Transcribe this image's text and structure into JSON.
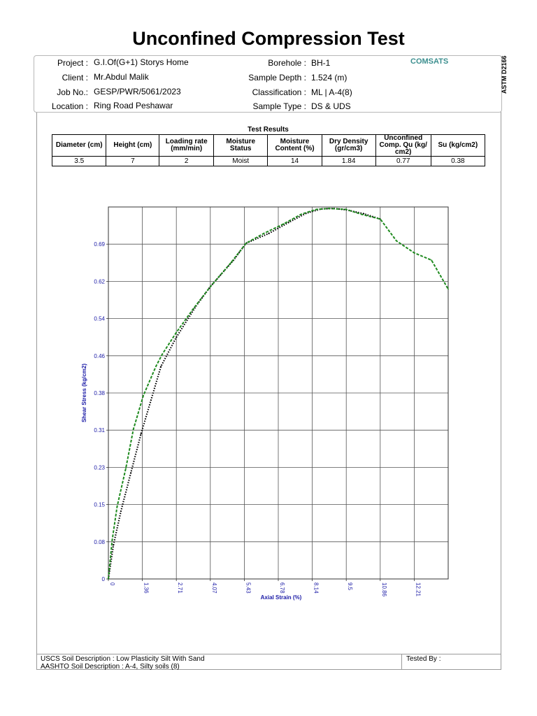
{
  "title": "Unconfined Compression Test",
  "header": {
    "project_label": "Project :",
    "project": "G.I.Of(G+1) Storys Home",
    "client_label": "Client :",
    "client": "Mr.Abdul Malik",
    "job_label": "Job No.:",
    "job": "GESP/PWR/5061/2023",
    "location_label": "Location :",
    "location": "Ring Road Peshawar",
    "borehole_label": "Borehole :",
    "borehole": "BH-1",
    "depth_label": "Sample Depth :",
    "depth": "1.524 (m)",
    "class_label": "Classification :",
    "classification": "ML | A-4(8)",
    "type_label": "Sample Type :",
    "sample_type": "DS & UDS",
    "company": "COMSATS"
  },
  "standard": "ASTM D2166",
  "results": {
    "title": "Test Results",
    "headers": [
      "Diameter (cm)",
      "Height (cm)",
      "Loading rate (mm/min)",
      "Moisture Status",
      "Moisture Content (%)",
      "Dry Density (gr/cm3)",
      "Unconfined Comp. Qu (kg/ cm2)",
      "Su  (kg/cm2)"
    ],
    "values": [
      "3.5",
      "7",
      "2",
      "Moist",
      "14",
      "1.84",
      "0.77",
      "0.38"
    ]
  },
  "chart_data": {
    "type": "line",
    "xlabel": "Axial Strain (%)",
    "ylabel": "Shear Stress (kg/cm2)",
    "x_ticks": [
      "0",
      "1.36",
      "2.71",
      "4.07",
      "5.43",
      "6.78",
      "8.14",
      "9.5",
      "10.86",
      "12.21"
    ],
    "y_ticks": [
      "0",
      "0.08",
      "0.15",
      "0.23",
      "0.31",
      "0.38",
      "0.46",
      "0.54",
      "0.62",
      "0.69"
    ],
    "xlim": [
      0,
      13.57
    ],
    "ylim": [
      0,
      0.77
    ],
    "grid": true,
    "series": [
      {
        "color": "#1f8a1f",
        "style": "dashed",
        "x": [
          0,
          0.15,
          0.35,
          0.7,
          1.0,
          1.4,
          1.9,
          2.15,
          2.71,
          3.4,
          4.07,
          4.9,
          5.5,
          6.2,
          7.0,
          7.7,
          8.3,
          8.8,
          9.5,
          10.1,
          10.86,
          11.5,
          12.21,
          12.9,
          13.57
        ],
        "y": [
          0,
          0.08,
          0.15,
          0.23,
          0.31,
          0.38,
          0.44,
          0.465,
          0.51,
          0.56,
          0.605,
          0.655,
          0.695,
          0.715,
          0.735,
          0.755,
          0.765,
          0.767,
          0.765,
          0.755,
          0.745,
          0.7,
          0.675,
          0.66,
          0.6
        ]
      },
      {
        "color": "#000000",
        "style": "dotted",
        "x": [
          0,
          0.2,
          0.5,
          0.9,
          1.3,
          1.7,
          2.1,
          2.71,
          3.5,
          4.07,
          5.0,
          5.5,
          6.4,
          7.2,
          7.9,
          8.5,
          9.0,
          9.5,
          10.2,
          10.86
        ],
        "y": [
          0,
          0.07,
          0.14,
          0.22,
          0.3,
          0.37,
          0.44,
          0.5,
          0.565,
          0.605,
          0.66,
          0.695,
          0.715,
          0.738,
          0.757,
          0.766,
          0.767,
          0.764,
          0.756,
          0.745
        ]
      }
    ]
  },
  "footer": {
    "uscs": "USCS Soil Description : Low Plasticity Silt With Sand",
    "aashto": "AASHTO Soil Description : A-4, Silty soils (8)",
    "tested_by": "Tested By :"
  }
}
